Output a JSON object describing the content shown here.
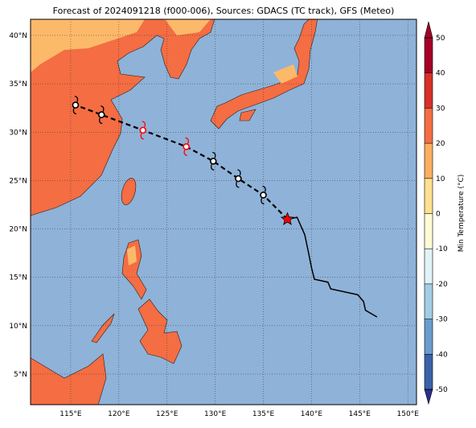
{
  "title": "Forecast of 2024091218 (f000-006), Sources: GDACS (TC track), GFS (Meteo)",
  "map": {
    "xlim": [
      110.83,
      150.9
    ],
    "ylim": [
      1.84,
      41.66
    ],
    "xticks": [
      {
        "value": 115,
        "label": "115°E"
      },
      {
        "value": 120,
        "label": "120°E"
      },
      {
        "value": 125,
        "label": "125°E"
      },
      {
        "value": 130,
        "label": "130°E"
      },
      {
        "value": 135,
        "label": "135°E"
      },
      {
        "value": 140,
        "label": "140°E"
      },
      {
        "value": 145,
        "label": "145°E"
      },
      {
        "value": 150,
        "label": "150°E"
      }
    ],
    "yticks": [
      {
        "value": 5,
        "label": "5°N"
      },
      {
        "value": 10,
        "label": "10°N"
      },
      {
        "value": 15,
        "label": "15°N"
      },
      {
        "value": 20,
        "label": "20°N"
      },
      {
        "value": 25,
        "label": "25°N"
      },
      {
        "value": 30,
        "label": "30°N"
      },
      {
        "value": 35,
        "label": "35°N"
      },
      {
        "value": 40,
        "label": "40°N"
      }
    ],
    "grid": true
  },
  "forecast_track": {
    "lon": [
      137.5,
      135,
      132.4,
      129.8,
      127,
      122.5,
      118.2,
      115.5
    ],
    "lat": [
      21.0,
      23.5,
      25.2,
      27.0,
      28.5,
      30.2,
      31.8,
      32.8
    ],
    "colors": [
      "#ff0000",
      "#000000",
      "#000000",
      "#000000",
      "#ff0000",
      "#ff0000",
      "#000000",
      "#000000"
    ]
  },
  "observed_track": {
    "lon": [
      137.5,
      138.5,
      139.3,
      139.7,
      140.0,
      140.3,
      141.7,
      142.0,
      144.8,
      145.4,
      145.6,
      146.8
    ],
    "lat": [
      21.0,
      21.2,
      19.4,
      17.5,
      16.0,
      14.8,
      14.5,
      13.8,
      13.2,
      12.5,
      11.6,
      10.9
    ]
  },
  "colorbar": {
    "label": "Min Temperature (°C)",
    "lim": [
      -50,
      50
    ],
    "ticks": [
      -50,
      -40,
      -30,
      -20,
      -10,
      0,
      10,
      20,
      30,
      40,
      50
    ],
    "colors": [
      "#2b2e8f",
      "#3a62a8",
      "#6a9ccc",
      "#a3cde3",
      "#e0f3f8",
      "#fffbd4",
      "#fee090",
      "#fdae61",
      "#f46d43",
      "#d73027",
      "#a50026"
    ]
  }
}
